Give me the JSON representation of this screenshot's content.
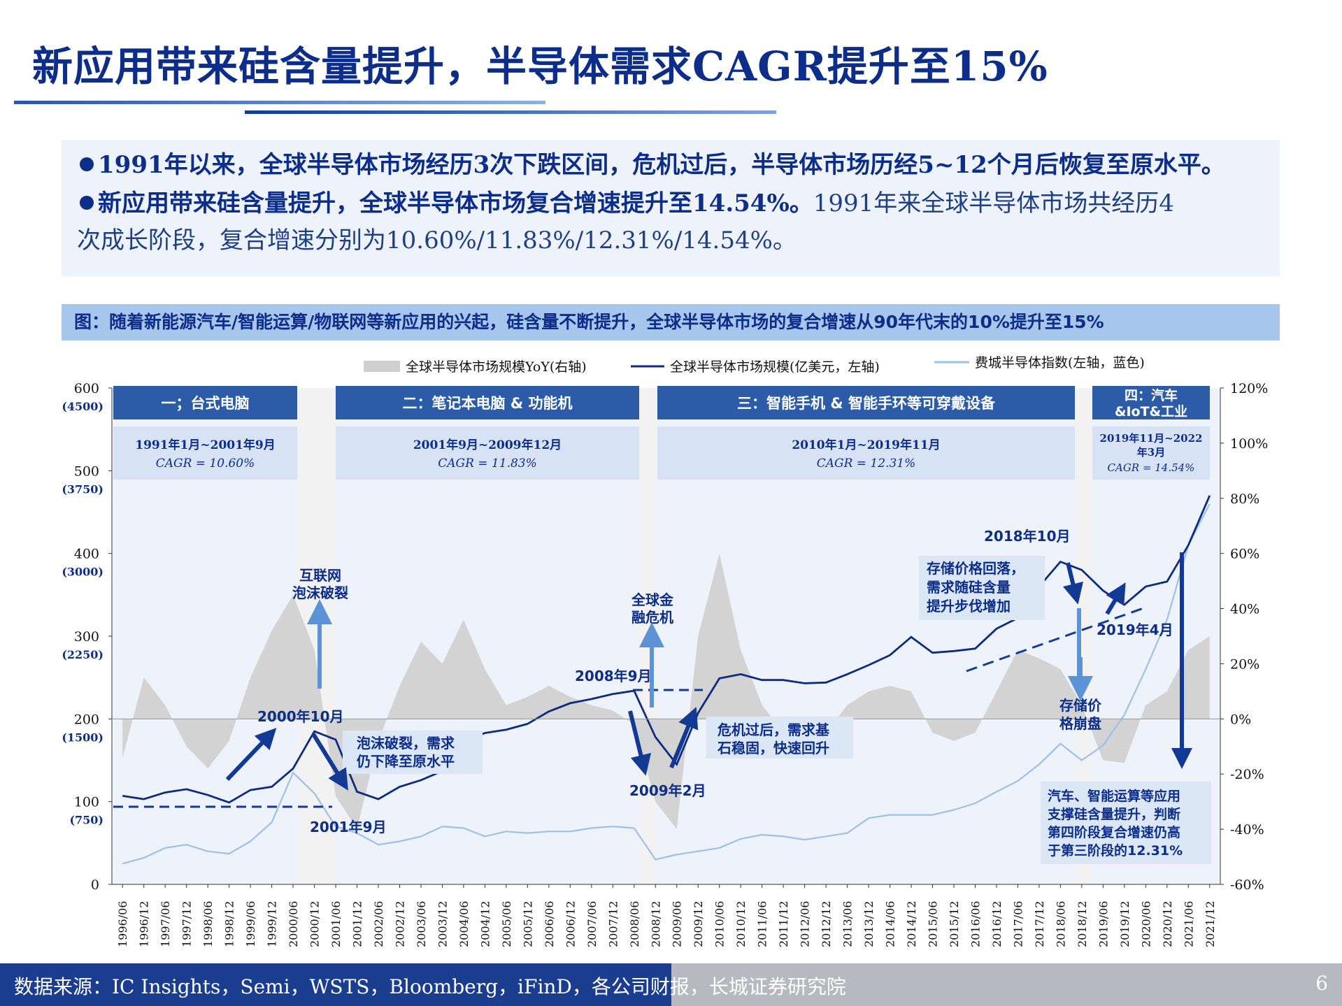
{
  "header": {
    "title": "新应用带来硅含量提升，半导体需求CAGR提升至15%"
  },
  "bullets": [
    {
      "bold": "1991年以来，全球半导体市场经历3次下跌区间，危机过后，半导体市场历经5~12个月后恢复至原水平。",
      "rest": ""
    },
    {
      "bold": "新应用带来硅含量提升，全球半导体市场复合增速提升至14.54%。",
      "rest": "1991年来全球半导体市场共经历4",
      "rest2": "次成长阶段，复合增速分别为10.60%/11.83%/12.31%/14.54%。"
    }
  ],
  "figure_caption": "图：随着新能源汽车/智能运算/物联网等新应用的兴起，硅含量不断提升，全球半导体市场的复合增速从90年代末的10%提升至15%",
  "footer": {
    "source": "数据来源：IC Insights，Semi，WSTS，Bloomberg，iFinD，各公司财报，长城证券研究院",
    "page": "6"
  },
  "colors": {
    "navy": "#0c2d8a",
    "market_line": "#0d2b80",
    "sox_line": "#9cc0e8",
    "yoy_area": "#cfcfcf",
    "phase_header": "#2c5ba8",
    "phase_cagr_bg": "#d7e3f5",
    "gap_band": "#f2f2f2",
    "arrow_light": "#5b93d6",
    "arrow_dark": "#123a94"
  },
  "chart_data": {
    "type": "line",
    "legend": [
      {
        "name": "全球半导体市场规模YoY(右轴)",
        "kind": "area"
      },
      {
        "name": "全球半导体市场规模(亿美元，左轴)",
        "kind": "line"
      },
      {
        "name": "费城半导体指数(左轴，蓝色)",
        "kind": "line"
      }
    ],
    "legend_position": "top",
    "y_left": {
      "ticks": [
        0,
        100,
        200,
        300,
        400,
        500,
        600
      ],
      "secondary_ticks": [
        "(750)",
        "(1500)",
        "(2250)",
        "(3000)",
        "(3750)",
        "(4500)"
      ],
      "range": [
        0,
        600
      ]
    },
    "y_right": {
      "ticks": [
        "-60%",
        "-40%",
        "-20%",
        "0%",
        "20%",
        "40%",
        "60%",
        "80%",
        "100%",
        "120%"
      ],
      "range": [
        -60,
        120
      ]
    },
    "x_labels": [
      "1996/06",
      "1996/12",
      "1997/06",
      "1997/12",
      "1998/06",
      "1998/12",
      "1999/06",
      "1999/12",
      "2000/06",
      "2000/12",
      "2001/06",
      "2001/12",
      "2002/06",
      "2002/12",
      "2003/06",
      "2003/12",
      "2004/06",
      "2004/12",
      "2005/06",
      "2005/12",
      "2006/06",
      "2006/12",
      "2007/06",
      "2007/12",
      "2008/06",
      "2008/12",
      "2009/06",
      "2009/12",
      "2010/06",
      "2010/12",
      "2011/06",
      "2011/12",
      "2012/06",
      "2012/12",
      "2013/06",
      "2013/12",
      "2014/06",
      "2014/12",
      "2015/06",
      "2015/12",
      "2016/06",
      "2016/12",
      "2017/06",
      "2017/12",
      "2018/06",
      "2018/12",
      "2019/06",
      "2019/12",
      "2020/06",
      "2020/12",
      "2021/06",
      "2021/12"
    ],
    "market_size": [
      107,
      103,
      111,
      115,
      108,
      99,
      114,
      118,
      140,
      185,
      175,
      112,
      103,
      118,
      126,
      137,
      172,
      183,
      187,
      194,
      209,
      219,
      224,
      230,
      234,
      178,
      145,
      207,
      249,
      254,
      247,
      247,
      243,
      244,
      254,
      265,
      277,
      299,
      280,
      282,
      285,
      309,
      322,
      360,
      390,
      380,
      355,
      338,
      360,
      366,
      410,
      470
    ],
    "sox_index": [
      25,
      32,
      44,
      48,
      40,
      37,
      52,
      75,
      135,
      110,
      70,
      62,
      48,
      52,
      58,
      70,
      68,
      58,
      64,
      62,
      64,
      64,
      68,
      70,
      68,
      30,
      36,
      40,
      44,
      55,
      60,
      58,
      54,
      58,
      62,
      80,
      84,
      84,
      84,
      90,
      98,
      112,
      125,
      145,
      170,
      150,
      168,
      205,
      260,
      320,
      410,
      460
    ],
    "yoy_pct": [
      -14,
      15,
      5,
      -10,
      -18,
      -8,
      15,
      32,
      45,
      25,
      -28,
      -40,
      -8,
      12,
      28,
      20,
      36,
      18,
      5,
      8,
      12,
      8,
      5,
      3,
      -2,
      -30,
      -40,
      30,
      60,
      25,
      5,
      -5,
      -8,
      -5,
      5,
      10,
      12,
      10,
      -5,
      -8,
      -5,
      10,
      25,
      22,
      18,
      5,
      -15,
      -16,
      5,
      10,
      25,
      30
    ],
    "phases": [
      {
        "label": "一；台式电脑",
        "period": "1991年1月~2001年9月",
        "cagr": "CAGR = 10.60%"
      },
      {
        "label": "二：笔记本电脑 & 功能机",
        "period": "2001年9月~2009年12月",
        "cagr": "CAGR = 11.83%"
      },
      {
        "label": "三：智能手机 & 智能手环等可穿戴设备",
        "period": "2010年1月~2019年11月",
        "cagr": "CAGR = 12.31%"
      },
      {
        "label": "四：汽车",
        "label2": "&IoT&工业",
        "period": "2019年11月~2022",
        "period2": "年3月",
        "cagr": "CAGR = 14.54%"
      }
    ],
    "annotations": {
      "peak_2000": "2000年10月",
      "trough_2001": "2001年9月",
      "bubble_line1": "互联网",
      "bubble_line2": "泡沫破裂",
      "bubble_desc1": "泡沫破裂，需求",
      "bubble_desc2": "仍下降至原水平",
      "peak_2008": "2008年9月",
      "trough_2009": "2009年2月",
      "crisis_line1": "全球金",
      "crisis_line2": "融危机",
      "crisis_desc1": "危机过后，需求基",
      "crisis_desc2": "石稳固，快速回升",
      "peak_2018": "2018年10月",
      "trough_2019": "2019年4月",
      "memory_desc1": "存储价格回落，",
      "memory_desc2": "需求随硅含量",
      "memory_desc3": "提升步伐增加",
      "memory_crash1": "存储价",
      "memory_crash2": "格崩盘",
      "outlook1": "汽车、智能运算等应用",
      "outlook2": "支撑硅含量提升，判断",
      "outlook3": "第四阶段复合增速仍高",
      "outlook4": "于第三阶段的12.31%"
    }
  }
}
